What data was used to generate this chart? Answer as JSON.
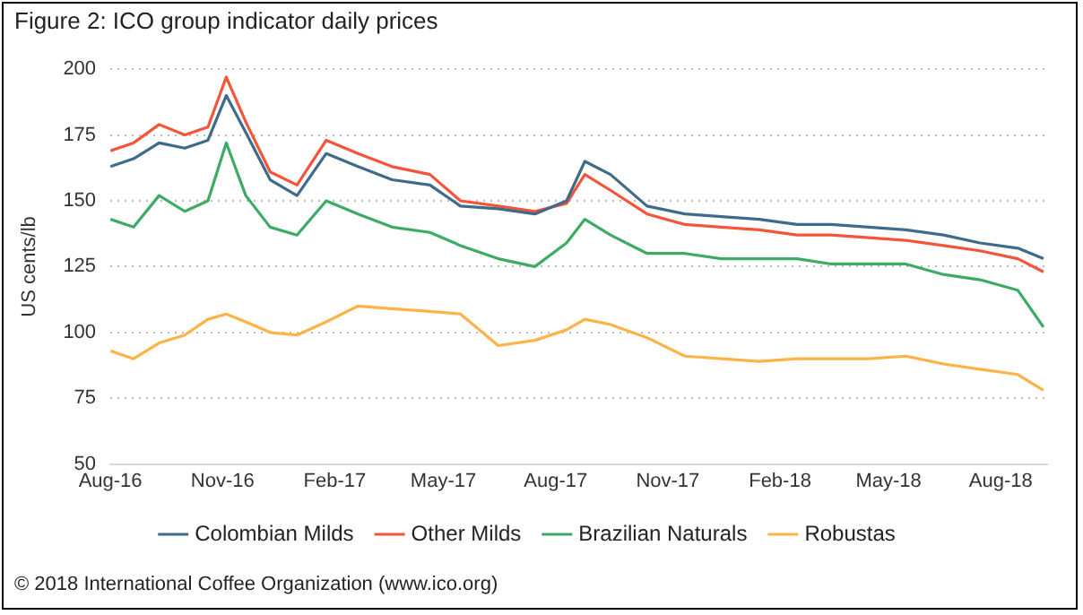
{
  "chart_data": {
    "type": "line",
    "title": "Figure 2: ICO group indicator daily prices",
    "ylabel": "US cents/lb",
    "x": [
      "2016-08-01",
      "2016-08-20",
      "2016-09-10",
      "2016-10-01",
      "2016-10-20",
      "2016-11-04",
      "2016-11-20",
      "2016-12-10",
      "2017-01-01",
      "2017-01-25",
      "2017-02-20",
      "2017-03-20",
      "2017-04-20",
      "2017-05-15",
      "2017-06-15",
      "2017-07-15",
      "2017-08-10",
      "2017-08-25",
      "2017-09-15",
      "2017-10-15",
      "2017-11-15",
      "2017-12-15",
      "2018-01-15",
      "2018-02-15",
      "2018-03-15",
      "2018-04-15",
      "2018-05-15",
      "2018-06-15",
      "2018-07-15",
      "2018-08-15",
      "2018-09-05"
    ],
    "series": [
      {
        "name": "Colombian Milds",
        "color": "#3f6b8a",
        "values": [
          163,
          166,
          172,
          170,
          173,
          190,
          176,
          158,
          152,
          168,
          163,
          158,
          156,
          148,
          147,
          145,
          150,
          165,
          160,
          148,
          145,
          144,
          143,
          141,
          141,
          140,
          139,
          137,
          134,
          132,
          128
        ]
      },
      {
        "name": "Other Milds",
        "color": "#f4553a",
        "values": [
          169,
          172,
          179,
          175,
          178,
          197,
          180,
          161,
          156,
          173,
          168,
          163,
          160,
          150,
          148,
          146,
          149,
          160,
          154,
          145,
          141,
          140,
          139,
          137,
          137,
          136,
          135,
          133,
          131,
          128,
          123
        ]
      },
      {
        "name": "Brazilian Naturals",
        "color": "#3daa66",
        "values": [
          143,
          140,
          152,
          146,
          150,
          172,
          152,
          140,
          137,
          150,
          145,
          140,
          138,
          133,
          128,
          125,
          134,
          143,
          137,
          130,
          130,
          128,
          128,
          128,
          126,
          126,
          126,
          122,
          120,
          116,
          102
        ]
      },
      {
        "name": "Robustas",
        "color": "#ffb347",
        "values": [
          93,
          90,
          96,
          99,
          105,
          107,
          104,
          100,
          99,
          104,
          110,
          109,
          108,
          107,
          95,
          97,
          101,
          105,
          103,
          98,
          91,
          90,
          89,
          90,
          90,
          90,
          91,
          88,
          86,
          84,
          78
        ]
      }
    ],
    "xlim": [
      "2016-08-01",
      "2018-09-08"
    ],
    "xticks": [
      {
        "value": "2016-08-01",
        "label": "Aug-16"
      },
      {
        "value": "2016-11-01",
        "label": "Nov-16"
      },
      {
        "value": "2017-02-01",
        "label": "Feb-17"
      },
      {
        "value": "2017-05-01",
        "label": "May-17"
      },
      {
        "value": "2017-08-01",
        "label": "Aug-17"
      },
      {
        "value": "2017-11-01",
        "label": "Nov-17"
      },
      {
        "value": "2018-02-01",
        "label": "Feb-18"
      },
      {
        "value": "2018-05-01",
        "label": "May-18"
      },
      {
        "value": "2018-08-01",
        "label": "Aug-18"
      }
    ],
    "ylim": [
      50,
      200
    ],
    "yticks": [
      50,
      75,
      100,
      125,
      150,
      175,
      200
    ],
    "grid": "y",
    "legend": "bottom",
    "marker": "none",
    "line_style": "solid",
    "annotations": [
      "© 2018 International Coffee Organization (www.ico.org)"
    ]
  }
}
